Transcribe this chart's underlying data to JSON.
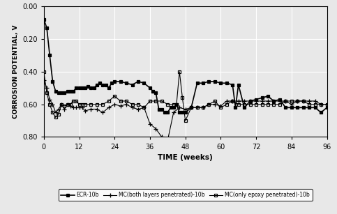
{
  "title": "",
  "xlabel": "TIME (weeks)",
  "ylabel": "CORROSION POTENTIAL, V",
  "xlim": [
    0,
    96
  ],
  "ylim": [
    -0.8,
    0.0
  ],
  "xticks": [
    0,
    12,
    24,
    36,
    48,
    60,
    72,
    84,
    96
  ],
  "ytick_vals": [
    0.0,
    -0.2,
    -0.4,
    -0.6,
    -0.8
  ],
  "ytick_labels": [
    "0.00",
    "0.20",
    "0.40",
    "0.60",
    "0.80"
  ],
  "bg_color": "#e8e8e8",
  "plot_bg": "#e8e8e8",
  "grid_color": "#ffffff",
  "series": [
    {
      "label": "ECR-10b",
      "marker": "s",
      "markersize": 3.5,
      "fillstyle": "full",
      "linewidth": 1.2,
      "x": [
        0,
        1,
        2,
        3,
        4,
        5,
        6,
        7,
        8,
        9,
        10,
        11,
        12,
        13,
        14,
        15,
        16,
        17,
        18,
        19,
        20,
        21,
        22,
        23,
        24,
        26,
        28,
        30,
        32,
        34,
        36,
        37,
        38,
        39,
        40,
        41,
        42,
        43,
        44,
        45,
        46,
        47,
        48,
        50,
        52,
        54,
        56,
        58,
        60,
        62,
        64,
        65,
        66,
        68,
        70,
        72,
        74,
        76,
        78,
        80,
        82,
        84,
        86,
        88,
        90,
        92,
        94,
        96
      ],
      "y": [
        -0.08,
        -0.13,
        -0.3,
        -0.46,
        -0.52,
        -0.53,
        -0.53,
        -0.53,
        -0.52,
        -0.52,
        -0.52,
        -0.5,
        -0.5,
        -0.5,
        -0.5,
        -0.49,
        -0.5,
        -0.5,
        -0.48,
        -0.47,
        -0.48,
        -0.48,
        -0.5,
        -0.47,
        -0.46,
        -0.46,
        -0.47,
        -0.48,
        -0.46,
        -0.47,
        -0.5,
        -0.52,
        -0.53,
        -0.63,
        -0.63,
        -0.65,
        -0.65,
        -0.62,
        -0.62,
        -0.6,
        -0.65,
        -0.65,
        -0.65,
        -0.62,
        -0.47,
        -0.47,
        -0.46,
        -0.46,
        -0.47,
        -0.47,
        -0.48,
        -0.62,
        -0.48,
        -0.62,
        -0.58,
        -0.57,
        -0.56,
        -0.55,
        -0.58,
        -0.57,
        -0.62,
        -0.62,
        -0.62,
        -0.62,
        -0.62,
        -0.62,
        -0.65,
        -0.62
      ]
    },
    {
      "label": "MC(both layers penetrated)-10b",
      "marker": "+",
      "markersize": 5,
      "fillstyle": "full",
      "linewidth": 0.8,
      "x": [
        0,
        1,
        2,
        3,
        4,
        5,
        6,
        7,
        8,
        9,
        10,
        11,
        12,
        13,
        14,
        16,
        18,
        20,
        22,
        24,
        26,
        28,
        30,
        32,
        34,
        36,
        38,
        40,
        42,
        44,
        46,
        48,
        50,
        52,
        54,
        56,
        58,
        60,
        62,
        64,
        66,
        68,
        70,
        72,
        74,
        76,
        78,
        80,
        82,
        84,
        86,
        88,
        90,
        92,
        94,
        96
      ],
      "y": [
        -0.45,
        -0.5,
        -0.57,
        -0.6,
        -0.65,
        -0.63,
        -0.6,
        -0.63,
        -0.6,
        -0.61,
        -0.62,
        -0.62,
        -0.62,
        -0.62,
        -0.64,
        -0.63,
        -0.63,
        -0.65,
        -0.62,
        -0.6,
        -0.61,
        -0.6,
        -0.62,
        -0.63,
        -0.62,
        -0.72,
        -0.75,
        -0.8,
        -0.82,
        -0.65,
        -0.62,
        -0.63,
        -0.62,
        -0.62,
        -0.62,
        -0.6,
        -0.6,
        -0.61,
        -0.58,
        -0.58,
        -0.58,
        -0.58,
        -0.58,
        -0.58,
        -0.58,
        -0.58,
        -0.58,
        -0.58,
        -0.58,
        -0.6,
        -0.58,
        -0.58,
        -0.58,
        -0.58,
        -0.6,
        -0.6
      ]
    },
    {
      "label": "MC(only epoxy penetrated)-10b",
      "marker": "s",
      "markersize": 3.5,
      "fillstyle": "none",
      "linewidth": 0.8,
      "x": [
        0,
        1,
        2,
        3,
        4,
        5,
        6,
        7,
        8,
        9,
        10,
        11,
        12,
        13,
        14,
        16,
        18,
        20,
        22,
        24,
        26,
        28,
        30,
        32,
        34,
        36,
        38,
        40,
        42,
        44,
        45,
        46,
        47,
        48,
        50,
        52,
        54,
        56,
        58,
        60,
        62,
        64,
        66,
        68,
        70,
        72,
        74,
        76,
        78,
        80,
        82,
        84,
        86,
        88,
        90,
        92,
        94,
        96
      ],
      "y": [
        -0.4,
        -0.53,
        -0.6,
        -0.65,
        -0.68,
        -0.66,
        -0.6,
        -0.61,
        -0.6,
        -0.6,
        -0.58,
        -0.58,
        -0.6,
        -0.6,
        -0.6,
        -0.6,
        -0.6,
        -0.6,
        -0.58,
        -0.55,
        -0.58,
        -0.58,
        -0.6,
        -0.6,
        -0.62,
        -0.58,
        -0.58,
        -0.58,
        -0.6,
        -0.6,
        -0.6,
        -0.4,
        -0.56,
        -0.7,
        -0.62,
        -0.62,
        -0.62,
        -0.6,
        -0.58,
        -0.62,
        -0.6,
        -0.58,
        -0.6,
        -0.6,
        -0.6,
        -0.6,
        -0.6,
        -0.6,
        -0.6,
        -0.6,
        -0.58,
        -0.58,
        -0.58,
        -0.58,
        -0.6,
        -0.6,
        -0.6,
        -0.6
      ]
    }
  ]
}
